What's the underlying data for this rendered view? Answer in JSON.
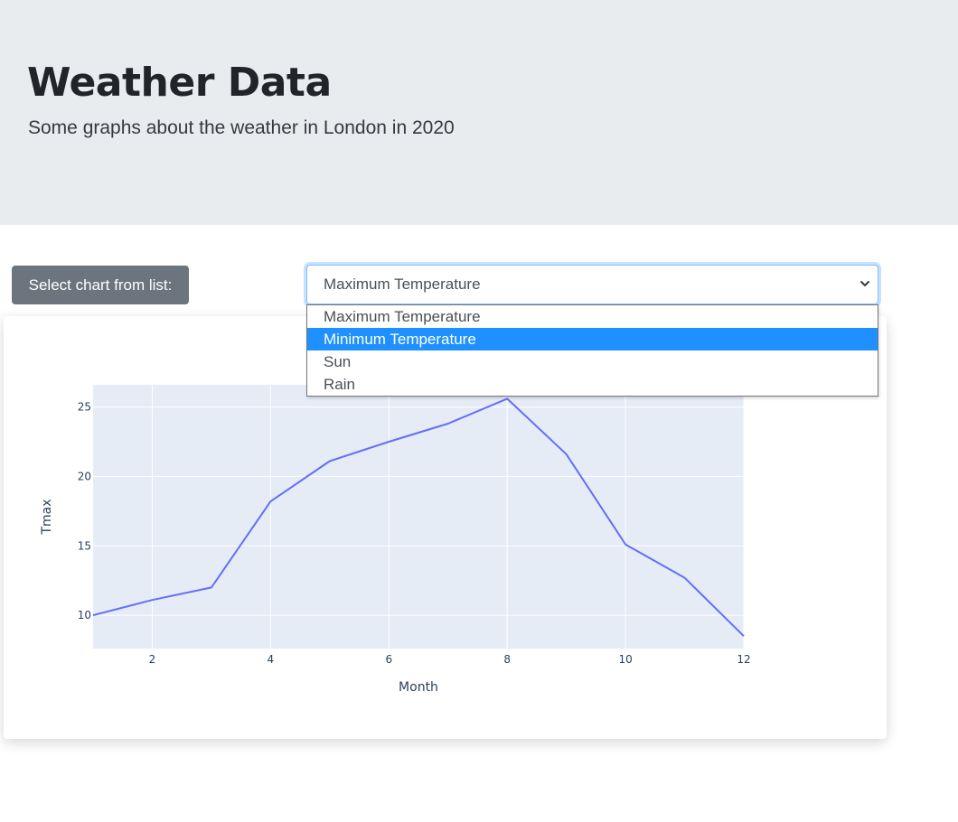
{
  "header": {
    "title": "Weather Data",
    "lead": "Some graphs about the weather in London in 2020"
  },
  "controls": {
    "label": "Select chart from list:",
    "selected": "Maximum Temperature",
    "options": [
      "Maximum Temperature",
      "Minimum Temperature",
      "Sun",
      "Rain"
    ],
    "highlighted_index": 1
  },
  "colors": {
    "jumbotron_bg": "#e9ecef",
    "label_bg": "#6c757d",
    "highlight": "#1e90ff",
    "plot_bg": "#e5ecf6",
    "line": "#636efa"
  },
  "chart_data": {
    "type": "line",
    "xlabel": "Month",
    "ylabel": "Tmax",
    "x": [
      1,
      2,
      3,
      4,
      5,
      6,
      7,
      8,
      9,
      10,
      11,
      12
    ],
    "y": [
      10.0,
      11.1,
      12.0,
      18.2,
      21.1,
      22.5,
      23.8,
      25.6,
      21.6,
      15.1,
      12.7,
      8.5
    ],
    "xlim": [
      1,
      12
    ],
    "ylim": [
      7.6,
      26.6
    ],
    "xticks": [
      2,
      4,
      6,
      8,
      10,
      12
    ],
    "yticks": [
      10,
      15,
      20,
      25
    ],
    "grid": true
  }
}
